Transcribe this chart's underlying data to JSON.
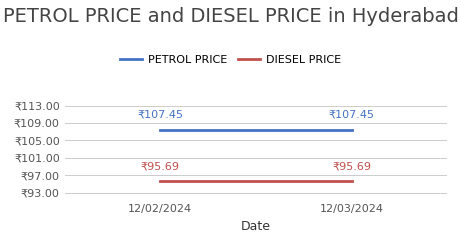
{
  "title": "PETROL PRICE and DIESEL PRICE in Hyderabad",
  "xlabel": "Date",
  "dates": [
    "12/02/2024",
    "12/03/2024"
  ],
  "petrol_values": [
    107.45,
    107.45
  ],
  "diesel_values": [
    95.69,
    95.69
  ],
  "petrol_color": "#4472C4",
  "diesel_color": "#C0504D",
  "yticks": [
    93.0,
    97.0,
    101.0,
    105.0,
    109.0,
    113.0
  ],
  "ylim": [
    91.5,
    115.5
  ],
  "title_fontsize": 14,
  "label_fontsize": 9,
  "tick_fontsize": 8,
  "legend_fontsize": 8,
  "annotation_fontsize": 8
}
